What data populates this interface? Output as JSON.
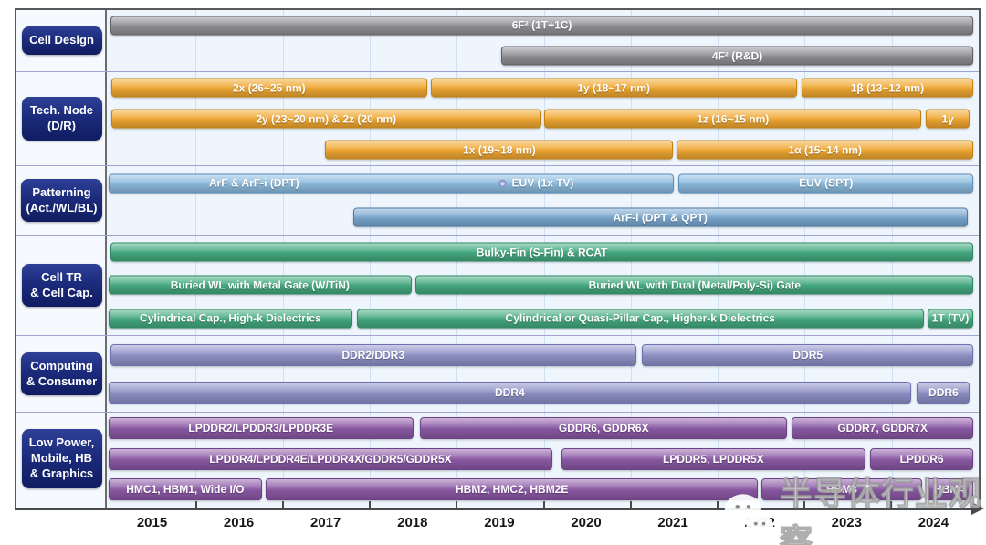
{
  "watermark": {
    "text": "半导体行业观察",
    "icon": "wechat-icon"
  },
  "palette": {
    "gray": {
      "base": "#909095",
      "border": "#606065"
    },
    "orange": {
      "base": "#f1a832",
      "border": "#c5820e"
    },
    "blue": {
      "base": "#8cbbde",
      "border": "#5d8fbc"
    },
    "blue2": {
      "base": "#79a7cf",
      "border": "#4e7ca8"
    },
    "green": {
      "base": "#44aa80",
      "border": "#2f8a64"
    },
    "periwinkle": {
      "base": "#8e91c7",
      "border": "#6e71b0"
    },
    "purple": {
      "base": "#8b59a5",
      "border": "#6d4286"
    }
  },
  "chart_data": {
    "type": "bar",
    "subtype": "gantt-roadmap-timeline",
    "x_range": [
      2015,
      2025
    ],
    "x_ticks": [
      "2015",
      "2016",
      "2017",
      "2018",
      "2019",
      "2020",
      "2021",
      "2022",
      "2023",
      "2024"
    ],
    "grid": true,
    "groups": [
      {
        "label": "Cell Design",
        "rows": [
          [
            {
              "label": "6F² (1T+1C)",
              "start": 2015.02,
              "end": 2024.94,
              "color": "gray"
            }
          ],
          [
            {
              "label": "4F² (R&D)",
              "start": 2019.51,
              "end": 2024.94,
              "color": "gray"
            }
          ]
        ]
      },
      {
        "label": "Tech. Node\n(D/R)",
        "rows": [
          [
            {
              "label": "2x (26~25 nm)",
              "start": 2015.03,
              "end": 2018.66,
              "color": "orange"
            },
            {
              "label": "1y (18~17 nm)",
              "start": 2018.7,
              "end": 2022.91,
              "color": "orange"
            },
            {
              "label": "1β (13~12 nm)",
              "start": 2022.96,
              "end": 2024.94,
              "color": "orange"
            }
          ],
          [
            {
              "label": "2y (23~20 nm) & 2z (20 nm)",
              "start": 2015.03,
              "end": 2019.97,
              "color": "orange"
            },
            {
              "label": "1z (16~15 nm)",
              "start": 2020.01,
              "end": 2024.34,
              "color": "orange"
            },
            {
              "label": "1γ",
              "start": 2024.39,
              "end": 2024.9,
              "color": "orange"
            }
          ],
          [
            {
              "label": "1x (19~18 nm)",
              "start": 2017.49,
              "end": 2021.49,
              "color": "orange"
            },
            {
              "label": "1α (15~14 nm)",
              "start": 2021.53,
              "end": 2024.94,
              "color": "orange"
            }
          ]
        ]
      },
      {
        "label": "Patterning\n(Act./WL/BL)",
        "rows": [
          [
            {
              "label": "ArF & ArF-i (DPT)",
              "label2": "EUV (1x TV)",
              "marker": "circle",
              "start": 2015.0,
              "end": 2021.5,
              "color": "blue"
            },
            {
              "label": "EUV (SPT)",
              "start": 2021.55,
              "end": 2024.94,
              "color": "blue"
            }
          ],
          [
            {
              "label": "ArF-i (DPT & QPT)",
              "start": 2017.81,
              "end": 2024.87,
              "color": "blue2"
            }
          ]
        ]
      },
      {
        "label": "Cell TR\n& Cell Cap.",
        "rows": [
          [
            {
              "label": "Bulky-Fin (S-Fin) & RCAT",
              "start": 2015.02,
              "end": 2024.94,
              "color": "green"
            }
          ],
          [
            {
              "label": "Buried WL with Metal Gate (W/TiN)",
              "start": 2015.0,
              "end": 2018.48,
              "color": "green"
            },
            {
              "label": "Buried WL with Dual (Metal/Poly-Si) Gate",
              "start": 2018.53,
              "end": 2024.94,
              "color": "green"
            }
          ],
          [
            {
              "label": "Cylindrical Cap., High-k Dielectrics",
              "start": 2015.0,
              "end": 2017.8,
              "color": "green"
            },
            {
              "label": "Cylindrical or Quasi-Pillar Cap., Higher-k Dielectrics",
              "start": 2017.85,
              "end": 2024.37,
              "color": "green"
            },
            {
              "label": "1T (TV)",
              "start": 2024.41,
              "end": 2024.94,
              "color": "green"
            }
          ]
        ]
      },
      {
        "label": "Computing\n& Consumer",
        "rows": [
          [
            {
              "label": "DDR2/DDR3",
              "start": 2015.02,
              "end": 2021.06,
              "color": "periwinkle"
            },
            {
              "label": "DDR5",
              "start": 2021.13,
              "end": 2024.94,
              "color": "periwinkle"
            }
          ],
          [
            {
              "label": "DDR4",
              "start": 2015.0,
              "end": 2024.22,
              "color": "periwinkle"
            },
            {
              "label": "DDR6",
              "start": 2024.29,
              "end": 2024.9,
              "color": "periwinkle"
            }
          ]
        ]
      },
      {
        "label": "Low Power,\nMobile, HB\n& Graphics",
        "rows": [
          [
            {
              "label": "LPDDR2/LPDDR3/LPDDR3E",
              "start": 2015.0,
              "end": 2018.5,
              "color": "purple"
            },
            {
              "label": "GDDR6, GDDR6X",
              "start": 2018.58,
              "end": 2022.8,
              "color": "purple"
            },
            {
              "label": "GDDR7, GDDR7X",
              "start": 2022.85,
              "end": 2024.94,
              "color": "purple"
            }
          ],
          [
            {
              "label": "LPDDR4/LPDDR4E/LPDDR4X/GDDR5/GDDR5X",
              "start": 2015.0,
              "end": 2020.1,
              "color": "purple"
            },
            {
              "label": "LPDDR5, LPDDR5X",
              "start": 2020.2,
              "end": 2023.7,
              "color": "purple"
            },
            {
              "label": "LPDDR6",
              "start": 2023.75,
              "end": 2024.94,
              "color": "purple"
            }
          ],
          [
            {
              "label": "HMC1, HBM1, Wide I/O",
              "start": 2015.0,
              "end": 2016.76,
              "color": "purple"
            },
            {
              "label": "HBM2, HMC2, HBM2E",
              "start": 2016.81,
              "end": 2022.46,
              "color": "purple"
            },
            {
              "label": "HBM3",
              "start": 2022.5,
              "end": 2024.35,
              "color": "purple"
            },
            {
              "label": "HBM4",
              "start": 2024.39,
              "end": 2024.94,
              "color": "purple"
            }
          ]
        ]
      }
    ]
  }
}
